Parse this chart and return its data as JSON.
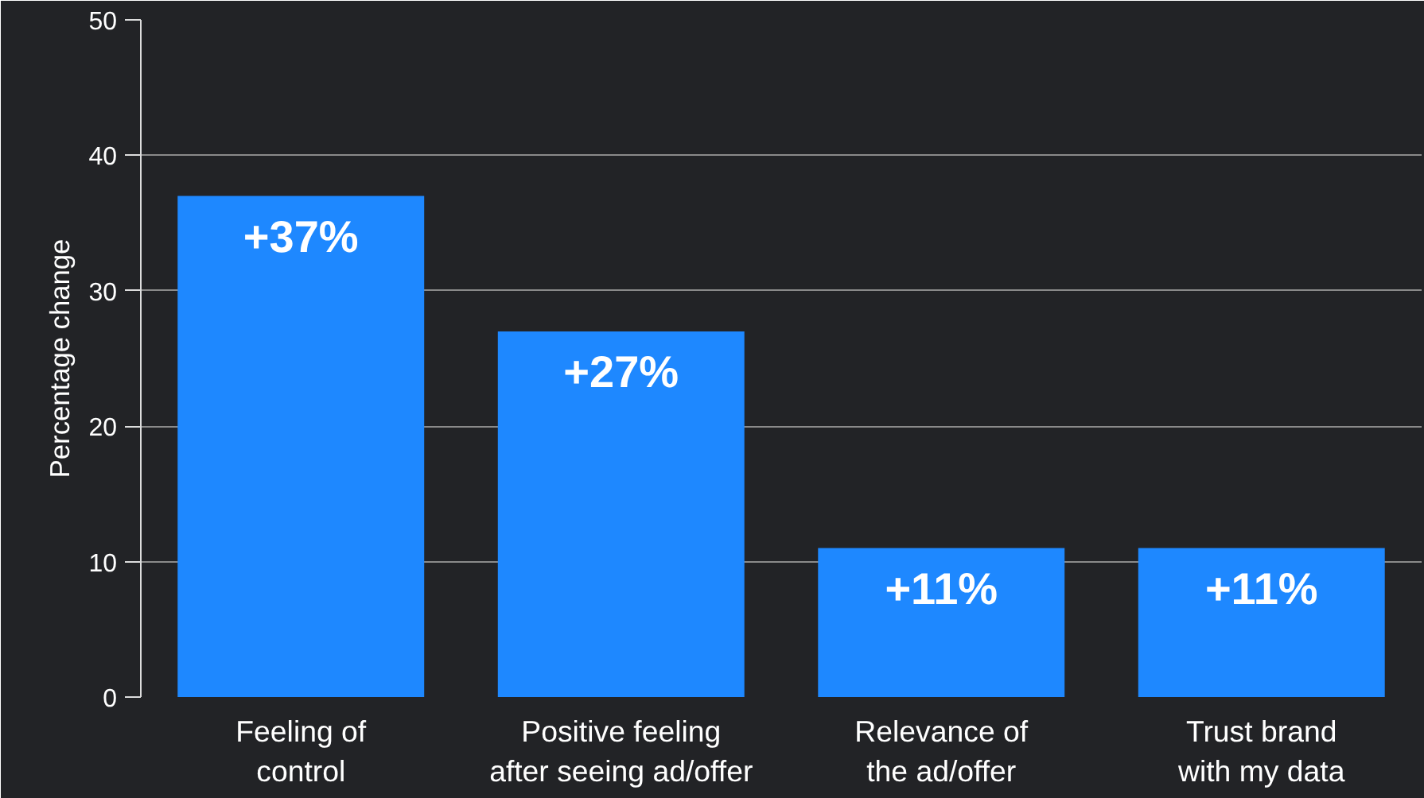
{
  "chart_data": {
    "type": "bar",
    "ylabel": "Percentage change",
    "categories": [
      "Feeling of control",
      "Positive feeling after seeing ad/offer",
      "Relevance of the ad/offer",
      "Trust brand with my data"
    ],
    "values": [
      37,
      27,
      11,
      11
    ],
    "color": "#1e88ff",
    "value_labels": [
      "+37%",
      "+27%",
      "+11%",
      "+11%"
    ],
    "ylim": [
      0,
      50
    ],
    "yticks": [
      0,
      10,
      20,
      30,
      40,
      50
    ],
    "grid": "y"
  }
}
